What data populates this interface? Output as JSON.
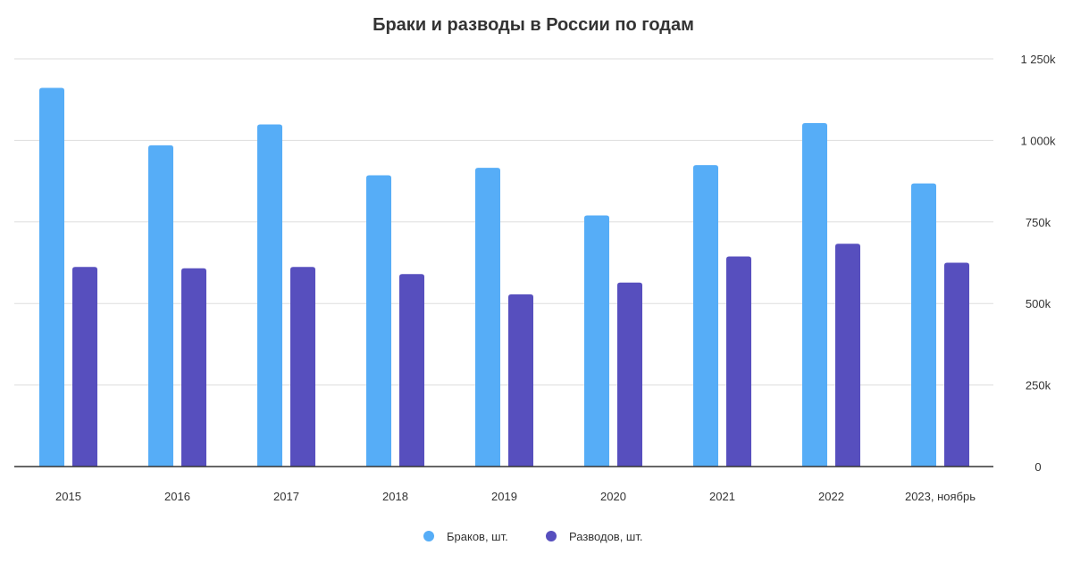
{
  "chart_data": {
    "type": "bar",
    "title": "Браки и разводы в России по годам",
    "categories": [
      "2015",
      "2016",
      "2017",
      "2018",
      "2019",
      "2020",
      "2021",
      "2022",
      "2023, ноябрь"
    ],
    "series": [
      {
        "name": "Браков, шт.",
        "color": "#56adf7",
        "values": [
          1161000,
          985000,
          1049000,
          893000,
          916000,
          770000,
          924000,
          1053000,
          868000
        ]
      },
      {
        "name": "Разводов, шт.",
        "color": "#574fbe",
        "values": [
          612000,
          608000,
          612000,
          590000,
          528000,
          564000,
          644000,
          683000,
          625000
        ]
      }
    ],
    "ylim": [
      0,
      1250000
    ],
    "yticks": [
      {
        "value": 0,
        "label": "0"
      },
      {
        "value": 250000,
        "label": "250k"
      },
      {
        "value": 500000,
        "label": "500k"
      },
      {
        "value": 750000,
        "label": "750k"
      },
      {
        "value": 1000000,
        "label": "1 000k"
      },
      {
        "value": 1250000,
        "label": "1 250k"
      }
    ],
    "y_axis_side": "right",
    "grid": true,
    "legend_position": "bottom-center"
  }
}
